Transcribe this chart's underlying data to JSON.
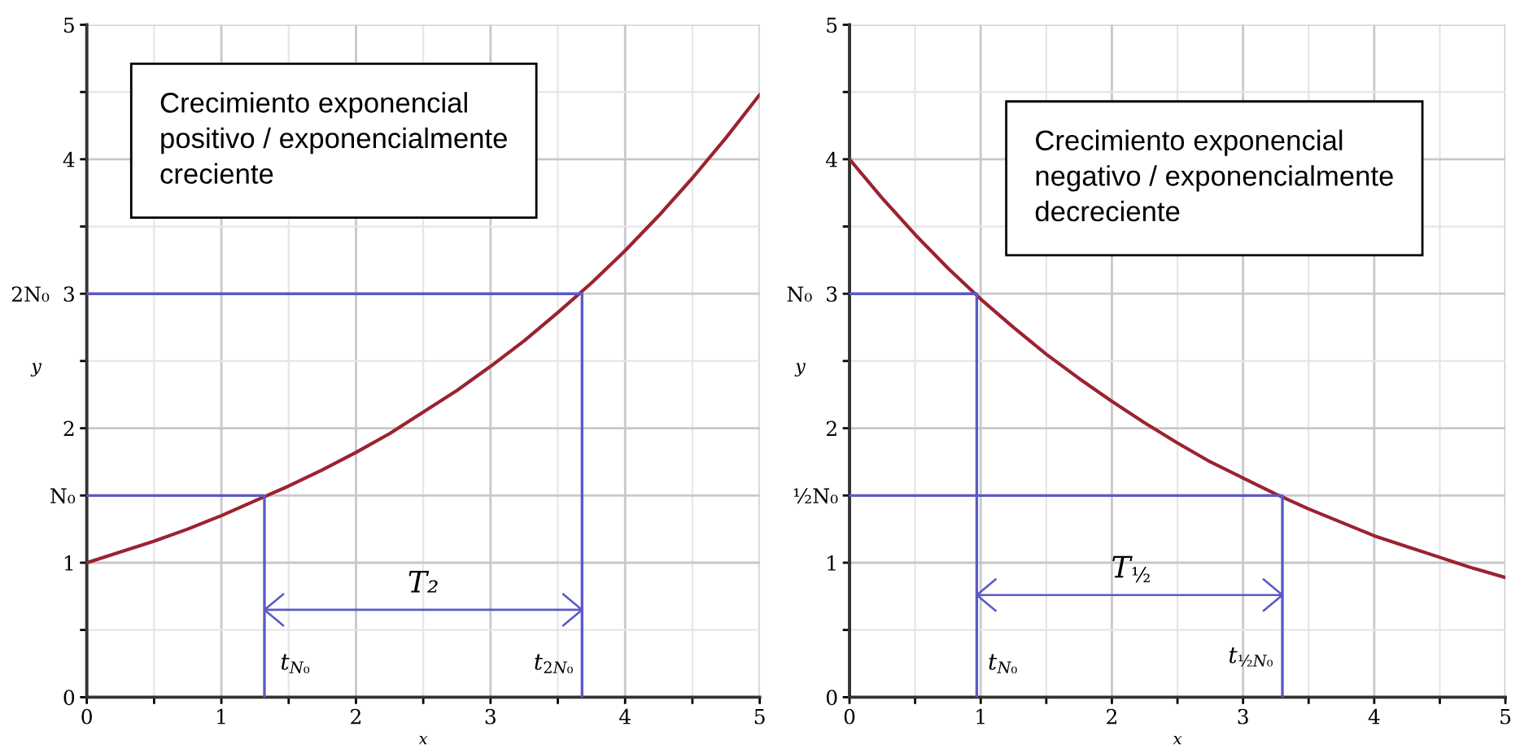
{
  "chart_data": [
    {
      "type": "line",
      "xlabel": "x",
      "ylabel": "y",
      "xlim": [
        0,
        5
      ],
      "ylim": [
        0,
        5
      ],
      "xticks": [
        0,
        {
          "value": 0.5,
          "label": null
        },
        1,
        {
          "value": 1.5,
          "label": null
        },
        2,
        {
          "value": 2.5,
          "label": null
        },
        3,
        {
          "value": 3.5,
          "label": null
        },
        4,
        {
          "value": 4.5,
          "label": null
        },
        5
      ],
      "yticks": [
        0,
        {
          "value": 0.5,
          "label": null
        },
        1,
        {
          "value": 1.5,
          "label": "N₀"
        },
        2,
        {
          "value": 2.5,
          "label": null
        },
        {
          "value": 3,
          "label": "2N₀  3"
        },
        {
          "value": 3.5,
          "label": null
        },
        4,
        {
          "value": 4.5,
          "label": null
        },
        5
      ],
      "grid": true,
      "series": [
        {
          "color": "#9c2231",
          "x": [
            0,
            0.25,
            0.5,
            0.75,
            1,
            1.25,
            1.5,
            1.75,
            2,
            2.25,
            2.5,
            2.75,
            3,
            3.25,
            3.5,
            3.75,
            4,
            4.25,
            4.5,
            4.75,
            5
          ],
          "values": [
            1.0,
            1.08,
            1.16,
            1.25,
            1.35,
            1.46,
            1.57,
            1.69,
            1.82,
            1.96,
            2.12,
            2.28,
            2.46,
            2.65,
            2.86,
            3.08,
            3.32,
            3.58,
            3.86,
            4.16,
            4.48
          ]
        },
        {
          "color": "#5a5ac8",
          "x": [
            0,
            1.32,
            1.32
          ],
          "values": [
            1.5,
            1.5,
            0
          ]
        },
        {
          "color": "#5a5ac8",
          "x": [
            0,
            3.68,
            3.68
          ],
          "values": [
            3,
            3,
            0
          ]
        }
      ],
      "annotations": [
        "Crecimiento exponencial\npositivo / exponencialmente\ncreciente",
        "T₂",
        "t$_{N₀}$",
        "t$_{2N₀}$"
      ]
    },
    {
      "type": "line",
      "xlabel": "x",
      "ylabel": "y",
      "xlim": [
        0,
        5
      ],
      "ylim": [
        0,
        5
      ],
      "xticks": [
        0,
        {
          "value": 0.5,
          "label": null
        },
        1,
        {
          "value": 1.5,
          "label": null
        },
        2,
        {
          "value": 2.5,
          "label": null
        },
        3,
        {
          "value": 3.5,
          "label": null
        },
        4,
        {
          "value": 4.5,
          "label": null
        },
        5
      ],
      "yticks": [
        0,
        {
          "value": 0.5,
          "label": null
        },
        1,
        {
          "value": 1.5,
          "label": "½N₀"
        },
        2,
        {
          "value": 2.5,
          "label": null
        },
        {
          "value": 3,
          "label": "N₀  3"
        },
        {
          "value": 3.5,
          "label": null
        },
        4,
        {
          "value": 4.5,
          "label": null
        },
        5
      ],
      "grid": true,
      "series": [
        {
          "color": "#9c2231",
          "x": [
            0,
            0.25,
            0.5,
            0.75,
            1,
            1.25,
            1.5,
            1.75,
            2,
            2.25,
            2.5,
            2.75,
            3,
            3.25,
            3.5,
            3.75,
            4,
            4.25,
            4.5,
            4.75,
            5
          ],
          "values": [
            4.0,
            3.71,
            3.44,
            3.19,
            2.96,
            2.75,
            2.55,
            2.37,
            2.2,
            2.04,
            1.89,
            1.75,
            1.63,
            1.51,
            1.4,
            1.3,
            1.2,
            1.12,
            1.04,
            0.96,
            0.89
          ]
        },
        {
          "color": "#5a5ac8",
          "x": [
            0,
            0.97,
            0.97
          ],
          "values": [
            3,
            3,
            0
          ]
        },
        {
          "color": "#5a5ac8",
          "x": [
            0,
            3.3,
            3.3
          ],
          "values": [
            1.5,
            1.5,
            0
          ]
        }
      ],
      "annotations": [
        "Crecimiento exponencial\nnegativo / exponencialmente\ndecreciente",
        "T$_{½}$",
        "t$_{N₀}$",
        "t$_{½N₀}$"
      ]
    }
  ]
}
